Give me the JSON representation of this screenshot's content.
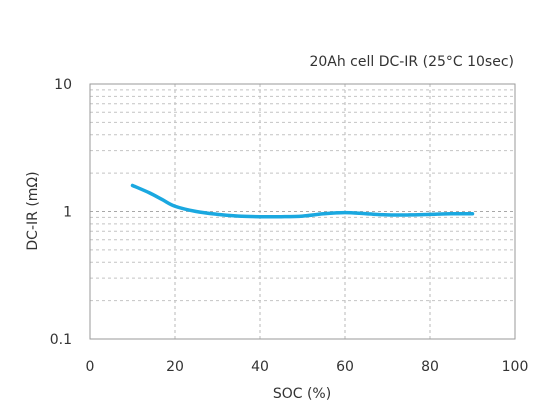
{
  "chart_data": {
    "type": "line",
    "title": "20Ah cell DC-IR (25°C 10sec)",
    "xlabel": "SOC (%)",
    "ylabel": "DC-IR (mΩ)",
    "xlim": [
      0,
      100
    ],
    "ylim": [
      0.1,
      10
    ],
    "yscale": "log",
    "grid": true,
    "x_ticks": [
      0,
      20,
      40,
      60,
      80,
      100
    ],
    "x_tick_labels": [
      "0",
      "20",
      "40",
      "60",
      "80",
      "100"
    ],
    "y_ticks": [
      0.1,
      1,
      10
    ],
    "y_tick_labels": [
      "0.1",
      "1",
      "10"
    ],
    "series": [
      {
        "color": "#1aa8e0",
        "x": [
          10,
          14,
          17,
          20,
          25,
          30,
          35,
          40,
          45,
          50,
          55,
          60,
          65,
          70,
          75,
          80,
          85,
          90
        ],
        "y": [
          1.6,
          1.4,
          1.24,
          1.1,
          1.0,
          0.95,
          0.92,
          0.91,
          0.91,
          0.92,
          0.96,
          0.98,
          0.96,
          0.94,
          0.94,
          0.95,
          0.96,
          0.96
        ]
      }
    ]
  }
}
